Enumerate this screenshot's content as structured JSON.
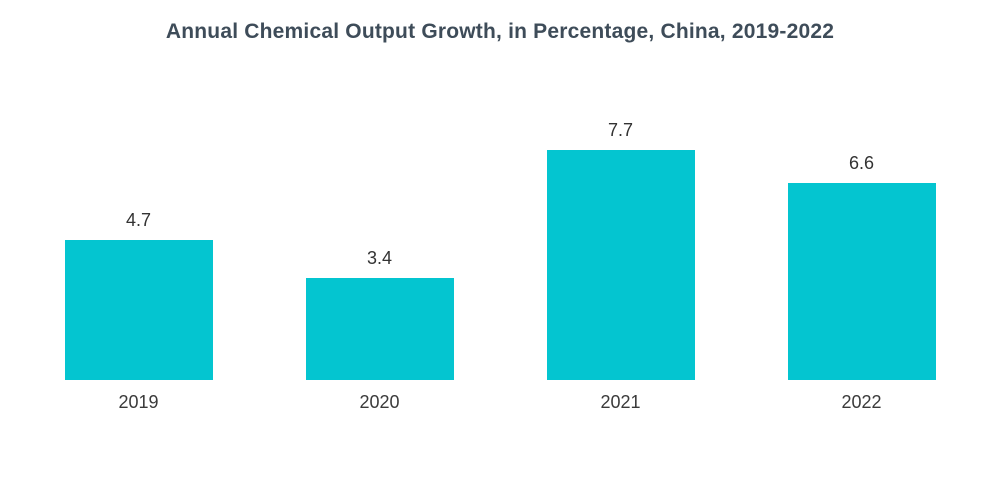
{
  "title": "Annual Chemical Output Growth, in Percentage, China, 2019-2022",
  "chart_data": {
    "type": "bar",
    "categories": [
      "2019",
      "2020",
      "2021",
      "2022"
    ],
    "values": [
      4.7,
      3.4,
      7.7,
      6.6
    ],
    "title": "Annual Chemical Output Growth, in Percentage, China, 2019-2022",
    "xlabel": "",
    "ylabel": "",
    "ylim": [
      0,
      8.5
    ],
    "grid": false,
    "legend": false,
    "data_labels": true,
    "bar_color": "#04c5d0",
    "title_color": "#3e4c59",
    "label_color": "#333333"
  }
}
